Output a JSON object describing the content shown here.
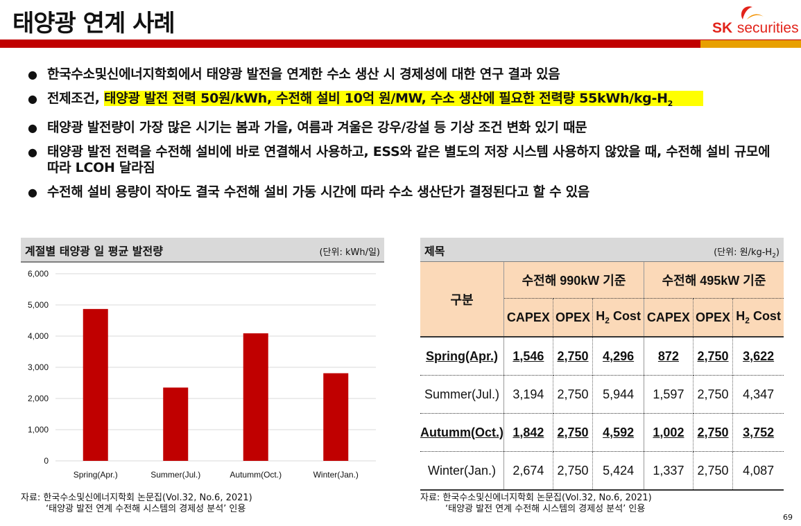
{
  "slide": {
    "title": "태양광 연계 사례",
    "page_number": "69"
  },
  "logo": {
    "sk": "SK",
    "securities": "securities"
  },
  "bullets": [
    {
      "text": "한국수소및신에너지학회에서 태양광 발전을 연계한 수소 생산 시 경제성에 대한 연구 결과 있음"
    },
    {
      "prefix": "전제조건, ",
      "highlight": "태양광 발전 전력 50원/kWh, 수전해 설비 10억 원/MW, 수소 생산에 필요한 전력량 55kWh/kg-H",
      "highlight_sub": "2"
    },
    {
      "text": "태양광 발전량이 가장 많은 시기는 봄과 가을, 여름과 겨울은 강우/강설 등 기상 조건 변화 있기 때문"
    },
    {
      "text": "태양광 발전 전력을 수전해 설비에 바로 연결해서 사용하고, ESS와 같은 별도의 저장 시스템 사용하지 않았을 때, 수전해 설비 규모에 따라 LCOH 달라짐"
    },
    {
      "text": "수전해 설비 용량이 작아도 결국 수전해 설비 가동 시간에 따라 수소 생산단가 결정된다고 할 수 있음"
    }
  ],
  "chart_panel": {
    "title": "계절별 태양광 일 평균 발전량",
    "unit": "(단위: kWh/일)"
  },
  "chart_data": {
    "type": "bar",
    "title": "계절별 태양광 일 평균 발전량",
    "categories": [
      "Spring(Apr.)",
      "Summer(Jul.)",
      "Autumm(Oct.)",
      "Winter(Jan.)"
    ],
    "values": [
      4870,
      2350,
      4090,
      2810
    ],
    "ylim": [
      0,
      6000
    ],
    "yticks": [
      "0",
      "1,000",
      "2,000",
      "3,000",
      "4,000",
      "5,000",
      "6,000"
    ],
    "ytick_values": [
      0,
      1000,
      2000,
      3000,
      4000,
      5000,
      6000
    ],
    "color": "#c00000",
    "grid": true
  },
  "table_panel": {
    "title": "제목",
    "unit": "(단위: 원/kg-H",
    "unit_sub": "2",
    "unit_close": ")"
  },
  "table": {
    "corner": "구분",
    "group1": "수전해 990kW 기준",
    "group2": "수전해 495kW 기준",
    "col_capex": "CAPEX",
    "col_opex": "OPEX",
    "col_h2": "H",
    "col_h2_sub": "2",
    "col_cost": " Cost",
    "rows": [
      {
        "label": "Spring(Apr.)",
        "v": [
          "1,546",
          "2,750",
          "4,296",
          "872",
          "2,750",
          "3,622"
        ]
      },
      {
        "label": "Summer(Jul.)",
        "v": [
          "3,194",
          "2,750",
          "5,944",
          "1,597",
          "2,750",
          "4,347"
        ]
      },
      {
        "label": "Autumm(Oct.)",
        "v": [
          "1,842",
          "2,750",
          "4,592",
          "1,002",
          "2,750",
          "3,752"
        ]
      },
      {
        "label": "Winter(Jan.)",
        "v": [
          "2,674",
          "2,750",
          "5,424",
          "1,337",
          "2,750",
          "4,087"
        ]
      }
    ]
  },
  "sources": {
    "left_line1": "자료: 한국수소및신에너지학회 논문집(Vol.32, No.6, 2021)",
    "left_line2": "‘태양광 발전 연계 수전해 시스템의 경제성 분석’ 인용",
    "right_line1": "자료: 한국수소및신에너지학회 논문집(Vol.32, No.6, 2021)",
    "right_line2": "‘태양광 발전 연계 수전해 시스템의 경제성 분석’ 인용"
  }
}
